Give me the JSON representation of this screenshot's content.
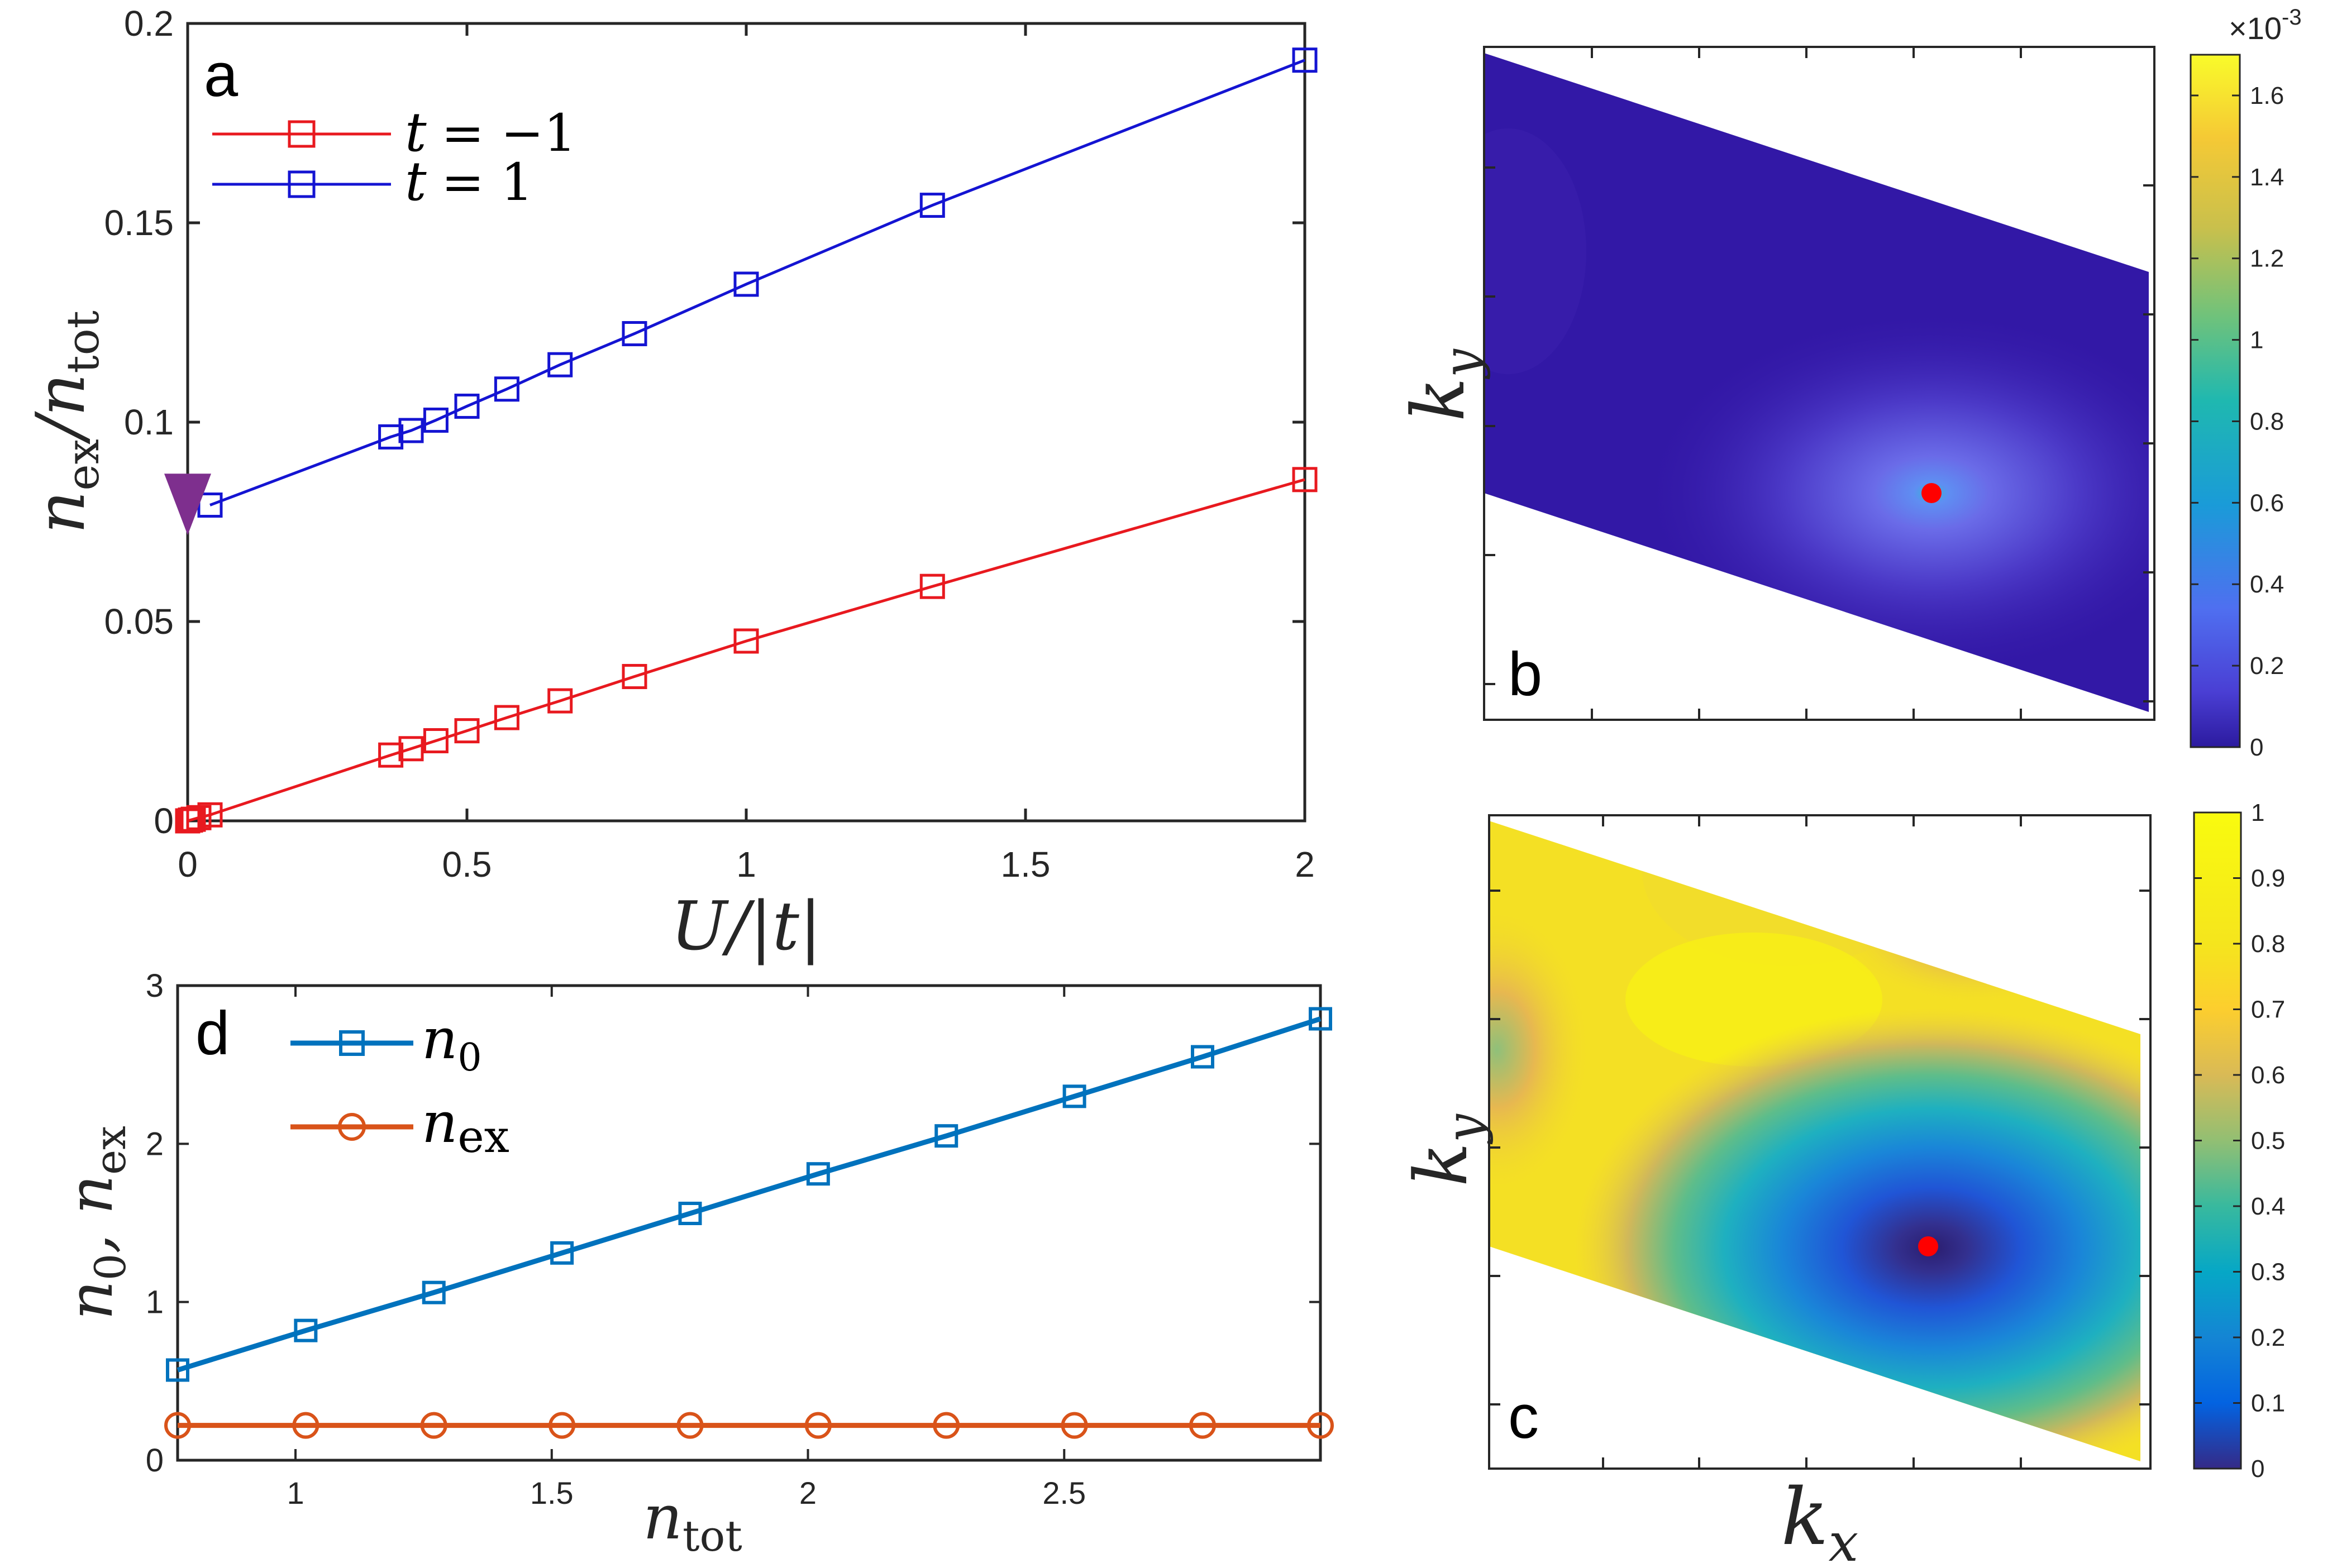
{
  "colors": {
    "red": "#e8191f",
    "blue": "#1414d2",
    "matlab_blue": "#0072bd",
    "matlab_orange": "#d95319",
    "purple_marker": "#7e2f8e",
    "dot": "#ff0000"
  },
  "chart_data": [
    {
      "panel": "a",
      "type": "line",
      "xlabel": "U/|t|",
      "ylabel": "n_ex/n_tot",
      "xlim": [
        0,
        2
      ],
      "ylim": [
        0,
        0.2
      ],
      "xticks": [
        "0",
        "0.5",
        "1",
        "1.5",
        "2"
      ],
      "yticks": [
        "0",
        "0.05",
        "0.1",
        "0.15",
        "0.2"
      ],
      "legend_position": "top-left",
      "series": [
        {
          "name": "t = −1",
          "color": "#e8191f",
          "marker": "square",
          "x": [
            0,
            0.005,
            0.01,
            0.02,
            0.04,
            0.3636,
            0.4,
            0.4444,
            0.5,
            0.5714,
            0.6667,
            0.8,
            1.0,
            1.3333,
            2.0
          ],
          "y": [
            0,
            0.0002,
            0.0004,
            0.0008,
            0.0015,
            0.0165,
            0.0181,
            0.0201,
            0.0226,
            0.0259,
            0.0301,
            0.0362,
            0.0451,
            0.0588,
            0.0856
          ]
        },
        {
          "name": "t = 1",
          "color": "#1414d2",
          "marker": "square",
          "x": [
            0.04,
            0.3636,
            0.4,
            0.4444,
            0.5,
            0.5714,
            0.6667,
            0.8,
            1.0,
            1.3333,
            2.0
          ],
          "y": [
            0.0792,
            0.0963,
            0.0979,
            0.1005,
            0.104,
            0.1083,
            0.1144,
            0.1222,
            0.1346,
            0.1544,
            0.1908
          ]
        }
      ],
      "special_marker": {
        "shape": "triangle-down",
        "x": 0,
        "y": 0.077,
        "color": "#7e2f8e"
      }
    },
    {
      "panel": "b",
      "type": "heatmap",
      "xlabel": "",
      "ylabel": "k_y",
      "colorbar": {
        "min": 0,
        "max": 0.0017,
        "exponent_label": "×10",
        "exponent": "-3",
        "ticks": [
          "0",
          "0.2",
          "0.4",
          "0.6",
          "0.8",
          "1",
          "1.2",
          "1.4",
          "1.6"
        ],
        "colormap": "parula"
      },
      "peak_point": {
        "color": "#ff0000"
      }
    },
    {
      "panel": "c",
      "type": "heatmap",
      "xlabel": "k_x",
      "ylabel": "k_y",
      "colorbar": {
        "min": 0,
        "max": 1,
        "ticks": [
          "0",
          "0.1",
          "0.2",
          "0.3",
          "0.4",
          "0.5",
          "0.6",
          "0.7",
          "0.8",
          "0.9",
          "1"
        ],
        "colormap": "parula"
      },
      "peak_point": {
        "color": "#ff0000"
      }
    },
    {
      "panel": "d",
      "type": "line",
      "xlabel": "n_tot",
      "ylabel": "n_0, n_ex",
      "xlim": [
        0.77,
        3.0
      ],
      "ylim": [
        0,
        3
      ],
      "xticks": [
        "1",
        "1.5",
        "2",
        "2.5"
      ],
      "yticks": [
        "0",
        "1",
        "2",
        "3"
      ],
      "legend_position": "top-left",
      "series": [
        {
          "name": "n_0",
          "color": "#0072bd",
          "marker": "square",
          "x": [
            0.77,
            1.02,
            1.27,
            1.52,
            1.77,
            2.02,
            2.27,
            2.52,
            2.77,
            3.0
          ],
          "y": [
            0.57,
            0.82,
            1.06,
            1.31,
            1.56,
            1.81,
            2.05,
            2.3,
            2.55,
            2.79
          ]
        },
        {
          "name": "n_ex",
          "color": "#d95319",
          "marker": "circle",
          "x": [
            0.77,
            1.02,
            1.27,
            1.52,
            1.77,
            2.02,
            2.27,
            2.52,
            2.77,
            3.0
          ],
          "y": [
            0.22,
            0.22,
            0.22,
            0.22,
            0.22,
            0.22,
            0.22,
            0.22,
            0.22,
            0.22
          ]
        }
      ]
    }
  ],
  "panel_labels": {
    "a": "a",
    "b": "b",
    "c": "c",
    "d": "d"
  },
  "legend_a": {
    "lhs": "t",
    "eq1": "= −1",
    "eq2": "= 1"
  },
  "legend_d": {
    "n": "n",
    "sub0": "0",
    "subex": "ex"
  },
  "axis_labels": {
    "a_x": "U/|t|",
    "a_y_n": "n",
    "a_y_ex": "ex",
    "a_y_slash": "/n",
    "a_y_tot": "tot",
    "d_x_n": "n",
    "d_x_tot": "tot",
    "d_y_n0": "n",
    "d_y_0": "0",
    "d_y_comma": ", n",
    "d_y_ex": "ex",
    "k": "k",
    "sub_y": "y",
    "sub_x": "x"
  }
}
